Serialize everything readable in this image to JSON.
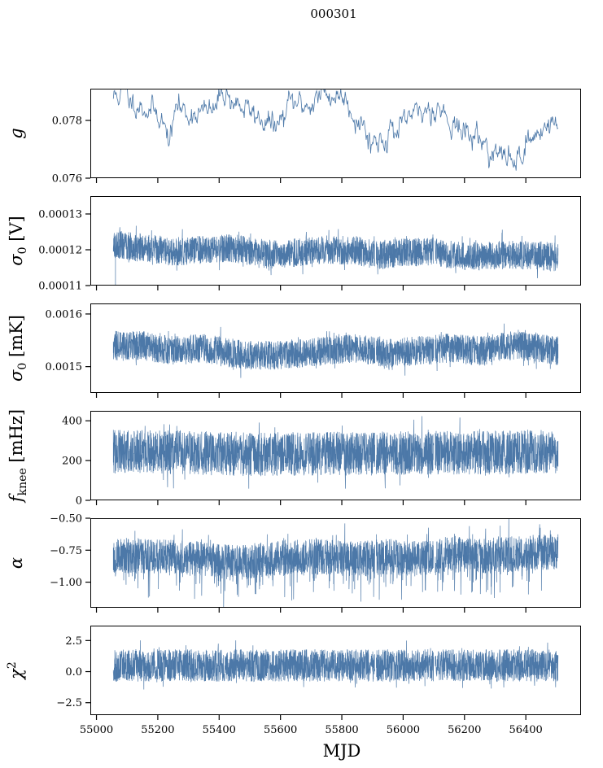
{
  "figure": {
    "title": "000301",
    "xlabel": "MJD",
    "series_color": "#4c78a8"
  },
  "chart_data": [
    {
      "type": "line",
      "name": "g",
      "ylabel": "g",
      "ylabel_parts": [
        {
          "t": "g",
          "style": "italic"
        }
      ],
      "xlim": [
        54980,
        56580
      ],
      "ylim": [
        0.076,
        0.0791
      ],
      "yticks": [
        0.076,
        0.078
      ],
      "ytick_labels": [
        "0.076",
        "0.078"
      ],
      "x_range": [
        55055,
        56505
      ],
      "profile": {
        "x": [
          55055,
          55070,
          55090,
          55110,
          55130,
          55160,
          55190,
          55210,
          55225,
          55240,
          55250,
          55260,
          55275,
          55300,
          55330,
          55360,
          55390,
          55410,
          55425,
          55440,
          55470,
          55500,
          55530,
          55560,
          55590,
          55610,
          55630,
          55660,
          55690,
          55720,
          55750,
          55780,
          55810,
          55830,
          55850,
          55870,
          55885,
          55900,
          55920,
          55940,
          55960,
          55980,
          56000,
          56020,
          56040,
          56060,
          56080,
          56100,
          56120,
          56140,
          56160,
          56190,
          56220,
          56250,
          56280,
          56300,
          56320,
          56340,
          56360,
          56380,
          56400,
          56420,
          56440,
          56460,
          56480,
          56505
        ],
        "y": [
          0.0788,
          0.0789,
          0.079,
          0.0787,
          0.0786,
          0.0784,
          0.0783,
          0.0782,
          0.0776,
          0.0774,
          0.0778,
          0.0786,
          0.0784,
          0.0782,
          0.0783,
          0.0783,
          0.0784,
          0.0791,
          0.0789,
          0.0787,
          0.0785,
          0.0783,
          0.0781,
          0.0779,
          0.0778,
          0.0781,
          0.0786,
          0.0786,
          0.0785,
          0.0788,
          0.0789,
          0.0788,
          0.0789,
          0.0784,
          0.078,
          0.0779,
          0.0774,
          0.0773,
          0.0773,
          0.0774,
          0.0777,
          0.0776,
          0.0777,
          0.0782,
          0.0781,
          0.0783,
          0.0784,
          0.0784,
          0.0785,
          0.0781,
          0.078,
          0.0776,
          0.0775,
          0.0774,
          0.077,
          0.0768,
          0.0768,
          0.0767,
          0.0766,
          0.0768,
          0.0772,
          0.0773,
          0.0776,
          0.0778,
          0.0779,
          0.0778
        ]
      },
      "wiggle": 0.00018,
      "points": 700,
      "seed": 11,
      "mode": "thin"
    },
    {
      "type": "line",
      "name": "sigma0-volts",
      "ylabel": "σ0 [V]",
      "ylabel_parts": [
        {
          "t": "σ",
          "style": "italic"
        },
        {
          "t": "0",
          "style": "sub"
        },
        {
          "t": " [V]",
          "style": "normal"
        }
      ],
      "xlim": [
        54980,
        56580
      ],
      "ylim": [
        0.00011,
        0.000135
      ],
      "yticks": [
        0.00011,
        0.00012,
        0.00013
      ],
      "ytick_labels": [
        "0.00011",
        "0.00012",
        "0.00013"
      ],
      "x_range": [
        55055,
        56505
      ],
      "profile": {
        "x": [
          55055,
          55150,
          55250,
          55350,
          55450,
          55550,
          55650,
          55750,
          55850,
          55910,
          56000,
          56100,
          56200,
          56300,
          56400,
          56505
        ],
        "y": [
          0.0001215,
          0.0001205,
          0.0001195,
          0.00012,
          0.0001205,
          0.0001185,
          0.0001192,
          0.00012,
          0.0001198,
          0.0001185,
          0.0001192,
          0.0001195,
          0.000118,
          0.0001185,
          0.0001185,
          0.000118
        ]
      },
      "band": 4e-06,
      "spike": 3.5e-06,
      "outliers": [
        [
          55062,
          0.00011,
          0.000121
        ]
      ],
      "gaps": [
        55910,
        56102
      ],
      "points": 1500,
      "seed": 23,
      "mode": "band"
    },
    {
      "type": "line",
      "name": "sigma0-millikelvin",
      "ylabel": "σ0 [mK]",
      "ylabel_parts": [
        {
          "t": "σ",
          "style": "italic"
        },
        {
          "t": "0",
          "style": "sub"
        },
        {
          "t": " [mK]",
          "style": "normal"
        }
      ],
      "xlim": [
        54980,
        56580
      ],
      "ylim": [
        0.00145,
        0.00162
      ],
      "yticks": [
        0.0015,
        0.0016
      ],
      "ytick_labels": [
        "0.0015",
        "0.0016"
      ],
      "x_range": [
        55055,
        56505
      ],
      "profile": {
        "x": [
          55055,
          55150,
          55250,
          55350,
          55450,
          55550,
          55650,
          55750,
          55850,
          55950,
          56050,
          56150,
          56250,
          56350,
          56450,
          56505
        ],
        "y": [
          0.00154,
          0.00154,
          0.00153,
          0.001535,
          0.001525,
          0.00152,
          0.001525,
          0.00153,
          0.001535,
          0.001525,
          0.00153,
          0.001535,
          0.00153,
          0.00154,
          0.001535,
          0.00153
        ]
      },
      "band": 2.8e-05,
      "spike": 2.4e-05,
      "gaps": [
        55910,
        56102
      ],
      "points": 1500,
      "seed": 37,
      "mode": "band"
    },
    {
      "type": "line",
      "name": "f-knee",
      "ylabel": "fknee [mHz]",
      "ylabel_parts": [
        {
          "t": "f",
          "style": "italic"
        },
        {
          "t": "knee",
          "style": "sub"
        },
        {
          "t": " [mHz]",
          "style": "normal"
        }
      ],
      "xlim": [
        54980,
        56580
      ],
      "ylim": [
        0,
        450
      ],
      "yticks": [
        0,
        200,
        400
      ],
      "ytick_labels": [
        "0",
        "200",
        "400"
      ],
      "x_range": [
        55055,
        56505
      ],
      "profile": {
        "x": [
          55055,
          55300,
          55500,
          55700,
          55900,
          56100,
          56300,
          56505
        ],
        "y": [
          245,
          240,
          230,
          235,
          235,
          240,
          240,
          245
        ]
      },
      "band": 110,
      "spike": 85,
      "gaps": [
        55910,
        56102
      ],
      "points": 1500,
      "seed": 41,
      "mode": "band"
    },
    {
      "type": "line",
      "name": "alpha",
      "ylabel": "α",
      "ylabel_parts": [
        {
          "t": "α",
          "style": "italic"
        }
      ],
      "xlim": [
        54980,
        56580
      ],
      "ylim": [
        -1.2,
        -0.5
      ],
      "yticks": [
        -1.0,
        -0.75,
        -0.5
      ],
      "ytick_labels": [
        "−1.00",
        "−0.75",
        "−0.50"
      ],
      "x_range": [
        55055,
        56505
      ],
      "profile": {
        "x": [
          55055,
          55200,
          55350,
          55450,
          55550,
          55700,
          55850,
          55950,
          56050,
          56150,
          56250,
          56350,
          56505
        ],
        "y": [
          -0.79,
          -0.8,
          -0.82,
          -0.85,
          -0.82,
          -0.8,
          -0.82,
          -0.8,
          -0.82,
          -0.78,
          -0.8,
          -0.78,
          -0.76
        ]
      },
      "band": 0.14,
      "spike": 0.18,
      "down_bias": true,
      "gaps": [
        55910,
        56102
      ],
      "points": 1500,
      "seed": 53,
      "mode": "band"
    },
    {
      "type": "line",
      "name": "chi-squared",
      "ylabel": "χ2",
      "ylabel_parts": [
        {
          "t": "χ",
          "style": "italic"
        },
        {
          "t": "2",
          "style": "sup"
        }
      ],
      "xlim": [
        54980,
        56580
      ],
      "ylim": [
        -3.5,
        3.7
      ],
      "yticks": [
        -2.5,
        0,
        2.5
      ],
      "ytick_labels": [
        "−2.5",
        "0.0",
        "2.5"
      ],
      "x_range": [
        55055,
        56505
      ],
      "profile": {
        "x": [
          55055,
          56505
        ],
        "y": [
          0.5,
          0.5
        ]
      },
      "band": 1.3,
      "spike": 0.9,
      "gaps": [
        55910,
        56102
      ],
      "points": 1500,
      "seed": 67,
      "mode": "band"
    }
  ],
  "x_axis": {
    "ticks": [
      55000,
      55200,
      55400,
      55600,
      55800,
      56000,
      56200,
      56400
    ],
    "tick_labels": [
      "55000",
      "55200",
      "55400",
      "55600",
      "55800",
      "56000",
      "56200",
      "56400"
    ]
  }
}
